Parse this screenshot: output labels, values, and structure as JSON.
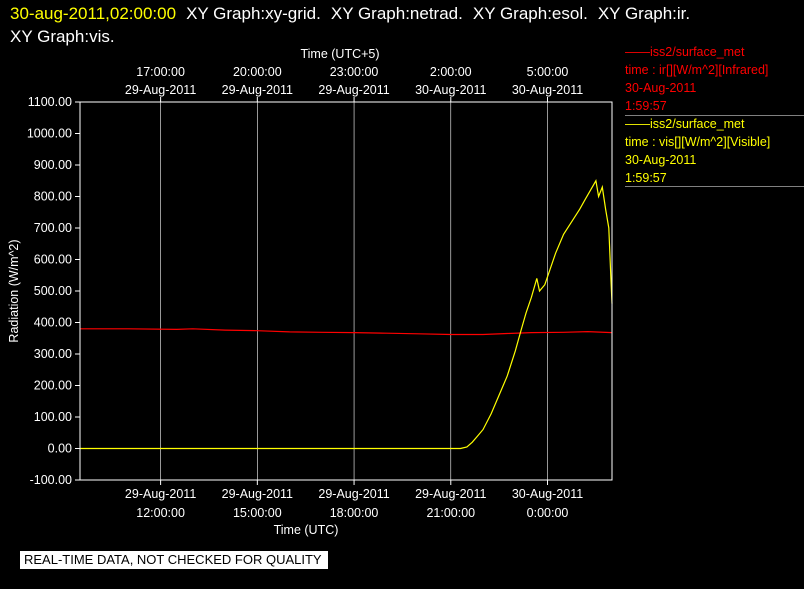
{
  "header": {
    "timestamp": "30-aug-2011,02:00:00",
    "graphs": [
      "XY Graph:xy-grid.",
      "XY Graph:netrad.",
      "XY Graph:esol.",
      "XY Graph:ir."
    ],
    "graphs_line2": [
      "XY Graph:vis."
    ]
  },
  "legend": [
    {
      "station": "iss2/surface_met",
      "field": "time : ir[][W/m^2][Infrared]",
      "date": "30-Aug-2011",
      "time": "1:59:57",
      "color": "#ff0000"
    },
    {
      "station": "iss2/surface_met",
      "field": "time : vis[][W/m^2][Visible]",
      "date": "30-Aug-2011",
      "time": "1:59:57",
      "color": "#ffff00"
    }
  ],
  "footer": {
    "text": "REAL-TIME DATA, NOT CHECKED FOR QUALITY"
  },
  "colors": {
    "background": "#000000",
    "axis": "#ffffff",
    "grid": "#ffffff",
    "ir": "#ff0000",
    "vis": "#ffff00"
  },
  "chart_data": {
    "type": "line",
    "xlabel": "Time (UTC)",
    "x2label": "Time (UTC+5)",
    "ylabel": "Radiation (W/m^2)",
    "ylim": [
      -100,
      1100
    ],
    "yticks": [
      "-100.00",
      "0.00",
      "100.00",
      "200.00",
      "300.00",
      "400.00",
      "500.00",
      "600.00",
      "700.00",
      "800.00",
      "900.00",
      "1000.00",
      "1100.00"
    ],
    "xlim": [
      "2011-08-29 09:30",
      "2011-08-30 02:00"
    ],
    "xticks": [
      {
        "t": "2011-08-29 12:00",
        "date": "29-Aug-2011",
        "time": "12:00:00"
      },
      {
        "t": "2011-08-29 15:00",
        "date": "29-Aug-2011",
        "time": "15:00:00"
      },
      {
        "t": "2011-08-29 18:00",
        "date": "29-Aug-2011",
        "time": "18:00:00"
      },
      {
        "t": "2011-08-29 21:00",
        "date": "29-Aug-2011",
        "time": "21:00:00"
      },
      {
        "t": "2011-08-30 00:00",
        "date": "30-Aug-2011",
        "time": "0:00:00"
      }
    ],
    "x2ticks": [
      {
        "t": "2011-08-29 12:00",
        "date": "29-Aug-2011",
        "time": "17:00:00"
      },
      {
        "t": "2011-08-29 15:00",
        "date": "29-Aug-2011",
        "time": "20:00:00"
      },
      {
        "t": "2011-08-29 18:00",
        "date": "29-Aug-2011",
        "time": "23:00:00"
      },
      {
        "t": "2011-08-29 21:00",
        "date": "30-Aug-2011",
        "time": "2:00:00"
      },
      {
        "t": "2011-08-30 00:00",
        "date": "30-Aug-2011",
        "time": "5:00:00"
      }
    ],
    "grid": true,
    "series": [
      {
        "name": "iss2/surface_met time : ir[][W/m^2][Infrared]",
        "color": "#ff0000",
        "points": [
          [
            "2011-08-29 09:30",
            380
          ],
          [
            "2011-08-29 11:00",
            380
          ],
          [
            "2011-08-29 12:30",
            378
          ],
          [
            "2011-08-29 13:00",
            380
          ],
          [
            "2011-08-29 14:00",
            376
          ],
          [
            "2011-08-29 15:00",
            374
          ],
          [
            "2011-08-29 16:00",
            370
          ],
          [
            "2011-08-29 17:00",
            369
          ],
          [
            "2011-08-29 18:00",
            368
          ],
          [
            "2011-08-29 19:00",
            366
          ],
          [
            "2011-08-29 20:00",
            364
          ],
          [
            "2011-08-29 21:00",
            362
          ],
          [
            "2011-08-29 22:00",
            362
          ],
          [
            "2011-08-29 22:45",
            365
          ],
          [
            "2011-08-29 23:30",
            368
          ],
          [
            "2011-08-30 00:30",
            369
          ],
          [
            "2011-08-30 01:15",
            371
          ],
          [
            "2011-08-30 02:00",
            368
          ]
        ]
      },
      {
        "name": "iss2/surface_met time : vis[][W/m^2][Visible]",
        "color": "#ffff00",
        "points": [
          [
            "2011-08-29 09:30",
            0
          ],
          [
            "2011-08-29 21:18",
            0
          ],
          [
            "2011-08-29 21:30",
            5
          ],
          [
            "2011-08-29 21:40",
            20
          ],
          [
            "2011-08-29 21:50",
            40
          ],
          [
            "2011-08-29 22:00",
            60
          ],
          [
            "2011-08-29 22:15",
            110
          ],
          [
            "2011-08-29 22:30",
            170
          ],
          [
            "2011-08-29 22:45",
            230
          ],
          [
            "2011-08-29 23:00",
            310
          ],
          [
            "2011-08-29 23:10",
            370
          ],
          [
            "2011-08-29 23:20",
            430
          ],
          [
            "2011-08-29 23:30",
            480
          ],
          [
            "2011-08-29 23:40",
            540
          ],
          [
            "2011-08-29 23:45",
            500
          ],
          [
            "2011-08-29 23:55",
            520
          ],
          [
            "2011-08-30 00:05",
            570
          ],
          [
            "2011-08-30 00:15",
            620
          ],
          [
            "2011-08-30 00:30",
            680
          ],
          [
            "2011-08-30 00:45",
            720
          ],
          [
            "2011-08-30 01:00",
            760
          ],
          [
            "2011-08-30 01:10",
            790
          ],
          [
            "2011-08-30 01:20",
            820
          ],
          [
            "2011-08-30 01:30",
            850
          ],
          [
            "2011-08-30 01:35",
            800
          ],
          [
            "2011-08-30 01:42",
            830
          ],
          [
            "2011-08-30 01:48",
            760
          ],
          [
            "2011-08-30 01:54",
            700
          ],
          [
            "2011-08-30 01:58",
            540
          ],
          [
            "2011-08-30 02:00",
            460
          ]
        ]
      }
    ]
  }
}
